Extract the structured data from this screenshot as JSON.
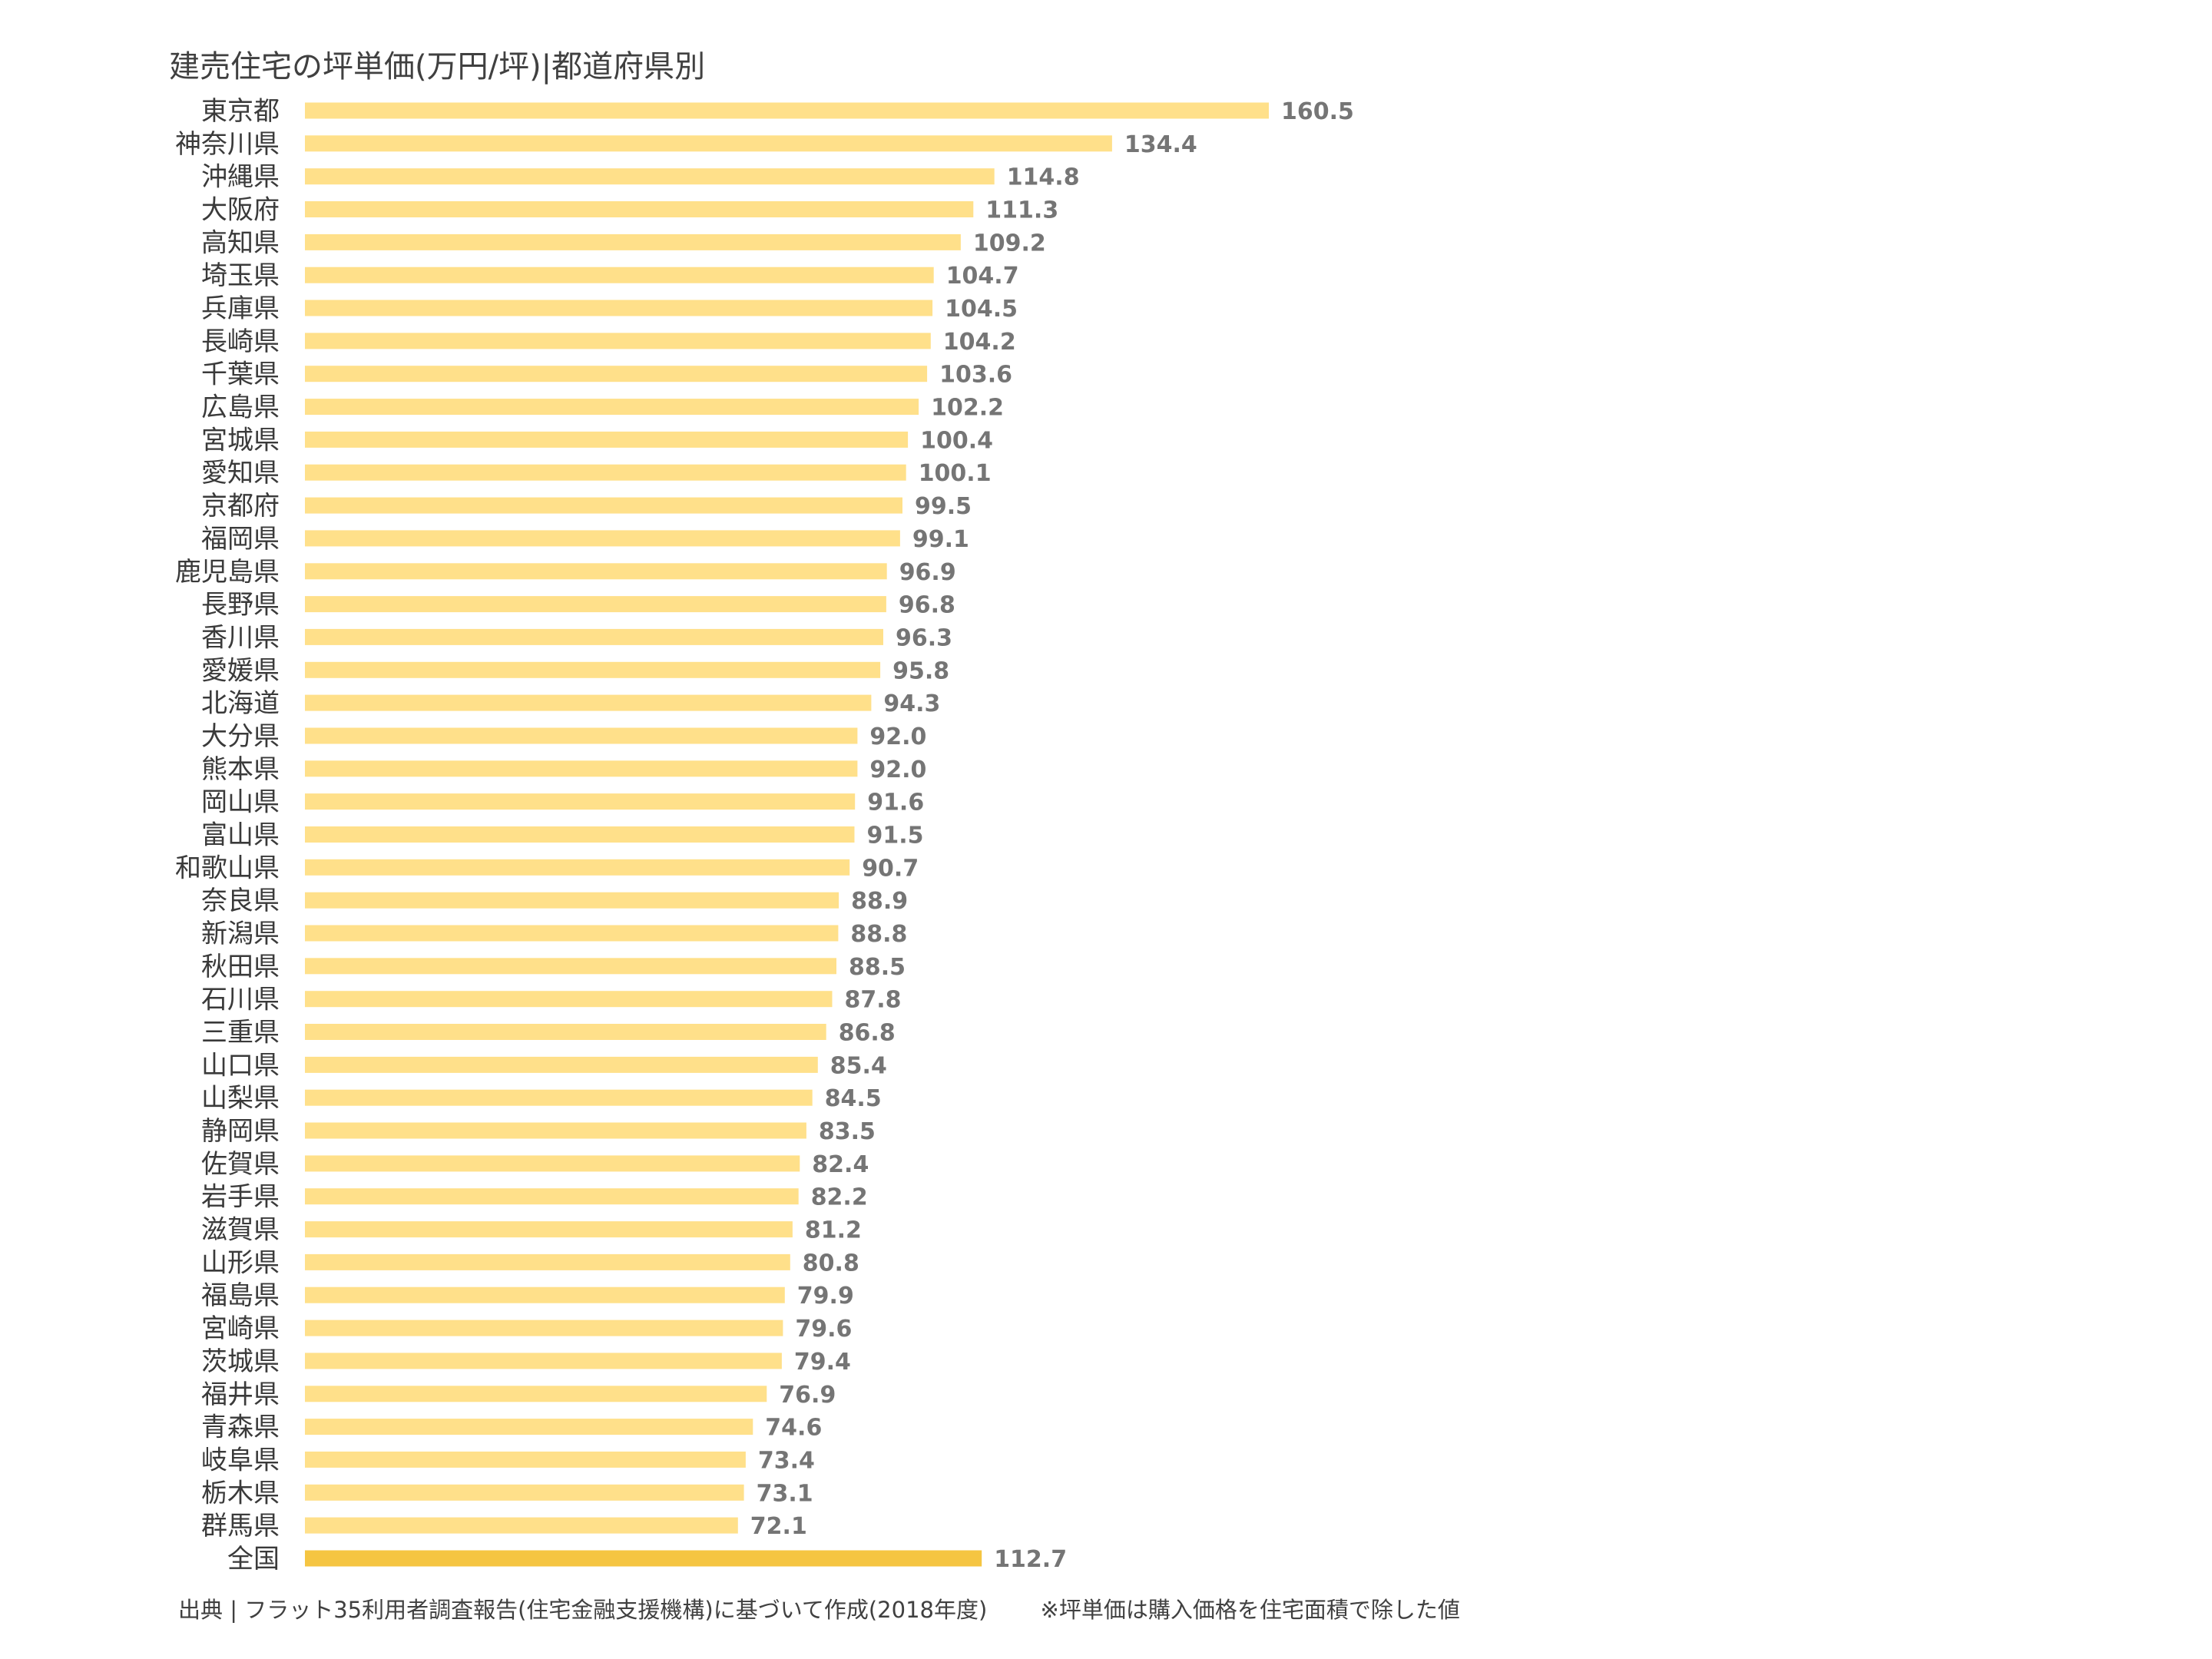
{
  "chart_data": {
    "type": "bar",
    "orientation": "horizontal",
    "title": "建売住宅の坪単価(万円/坪)|都道府県別",
    "categories": [
      "東京都",
      "神奈川県",
      "沖縄県",
      "大阪府",
      "高知県",
      "埼玉県",
      "兵庫県",
      "長崎県",
      "千葉県",
      "広島県",
      "宮城県",
      "愛知県",
      "京都府",
      "福岡県",
      "鹿児島県",
      "長野県",
      "香川県",
      "愛媛県",
      "北海道",
      "大分県",
      "熊本県",
      "岡山県",
      "富山県",
      "和歌山県",
      "奈良県",
      "新潟県",
      "秋田県",
      "石川県",
      "三重県",
      "山口県",
      "山梨県",
      "静岡県",
      "佐賀県",
      "岩手県",
      "滋賀県",
      "山形県",
      "福島県",
      "宮崎県",
      "茨城県",
      "福井県",
      "青森県",
      "岐阜県",
      "栃木県",
      "群馬県",
      "全国"
    ],
    "values": [
      160.5,
      134.4,
      114.8,
      111.3,
      109.2,
      104.7,
      104.5,
      104.2,
      103.6,
      102.2,
      100.4,
      100.1,
      99.5,
      99.1,
      96.9,
      96.8,
      96.3,
      95.8,
      94.3,
      92.0,
      92.0,
      91.6,
      91.5,
      90.7,
      88.9,
      88.8,
      88.5,
      87.8,
      86.8,
      85.4,
      84.5,
      83.5,
      82.4,
      82.2,
      81.2,
      80.8,
      79.9,
      79.6,
      79.4,
      76.9,
      74.6,
      73.4,
      73.1,
      72.1,
      112.7
    ],
    "value_labels": [
      "160.5",
      "134.4",
      "114.8",
      "111.3",
      "109.2",
      "104.7",
      "104.5",
      "104.2",
      "103.6",
      "102.2",
      "100.4",
      "100.1",
      "99.5",
      "99.1",
      "96.9",
      "96.8",
      "96.3",
      "95.8",
      "94.3",
      "92.0",
      "92.0",
      "91.6",
      "91.5",
      "90.7",
      "88.9",
      "88.8",
      "88.5",
      "87.8",
      "86.8",
      "85.4",
      "84.5",
      "83.5",
      "82.4",
      "82.2",
      "81.2",
      "80.8",
      "79.9",
      "79.6",
      "79.4",
      "76.9",
      "74.6",
      "73.4",
      "73.1",
      "72.1",
      "112.7"
    ],
    "highlight_category": "全国",
    "xlim": [
      0,
      160.5
    ],
    "grid": false,
    "legend": "none",
    "colors": {
      "bar": "#FFE08A",
      "highlight": "#F5C542",
      "value_label": "#757575",
      "category_label": "#3a3a3a"
    }
  },
  "footer": {
    "source": "出典 | フラット35利用者調査報告(住宅金融支援機構)に基づいて作成(2018年度)",
    "note": "※坪単価は購入価格を住宅面積で除した値"
  }
}
